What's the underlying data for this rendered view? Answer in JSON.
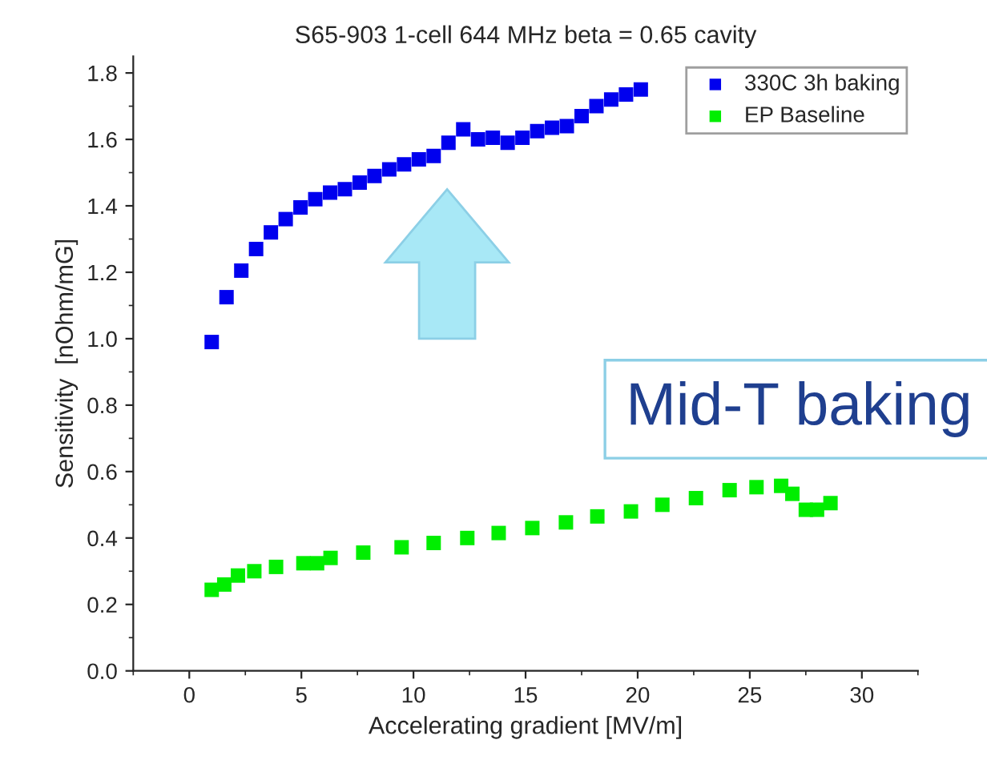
{
  "chart_data": {
    "type": "scatter",
    "title": "S65-903 1-cell 644 MHz beta = 0.65 cavity",
    "xlabel": "Accelerating gradient [MV/m]",
    "ylabel": "Sensitivity  [nOhm/mG]",
    "xlim": [
      -2.5,
      32.5
    ],
    "xticks": [
      0,
      5,
      10,
      15,
      20,
      25,
      30
    ],
    "ylim": [
      0,
      1.85
    ],
    "yticks": [
      {
        "value": 0,
        "label": "0.0"
      },
      0.2,
      0.4,
      0.6,
      0.8,
      {
        "value": 1,
        "label": "1.0"
      },
      1.2,
      1.4,
      1.6,
      1.8
    ],
    "marker": "square",
    "legend": "top right",
    "grid": false,
    "annotations": [
      "Mid-T baking"
    ],
    "series": [
      {
        "name": "330C 3h baking",
        "color": "#0000ee",
        "x": [
          1.0,
          1.66,
          2.32,
          2.98,
          3.64,
          4.3,
          4.96,
          5.62,
          6.28,
          6.94,
          7.6,
          8.26,
          8.92,
          9.58,
          10.24,
          10.9,
          11.56,
          12.22,
          12.88,
          13.54,
          14.2,
          14.86,
          15.52,
          16.18,
          16.84,
          17.5,
          18.16,
          18.82,
          19.48,
          20.14
        ],
        "values": [
          0.99,
          1.125,
          1.205,
          1.27,
          1.32,
          1.36,
          1.395,
          1.42,
          1.44,
          1.45,
          1.47,
          1.49,
          1.51,
          1.525,
          1.54,
          1.55,
          1.59,
          1.63,
          1.6,
          1.605,
          1.59,
          1.605,
          1.625,
          1.635,
          1.64,
          1.67,
          1.7,
          1.72,
          1.735,
          1.75
        ]
      },
      {
        "name": "EP Baseline",
        "color": "#00ee00",
        "x": [
          1.0,
          1.56,
          2.17,
          2.9,
          3.87,
          5.09,
          5.7,
          6.3,
          7.76,
          9.47,
          10.9,
          12.4,
          13.8,
          15.3,
          16.8,
          18.2,
          19.7,
          21.1,
          22.6,
          24.1,
          25.3,
          26.4,
          26.9,
          27.5,
          28.0,
          28.6
        ],
        "values": [
          0.244,
          0.26,
          0.287,
          0.3,
          0.313,
          0.324,
          0.324,
          0.34,
          0.356,
          0.372,
          0.385,
          0.4,
          0.415,
          0.43,
          0.447,
          0.465,
          0.48,
          0.5,
          0.52,
          0.544,
          0.553,
          0.557,
          0.533,
          0.485,
          0.485,
          0.505
        ]
      }
    ]
  }
}
